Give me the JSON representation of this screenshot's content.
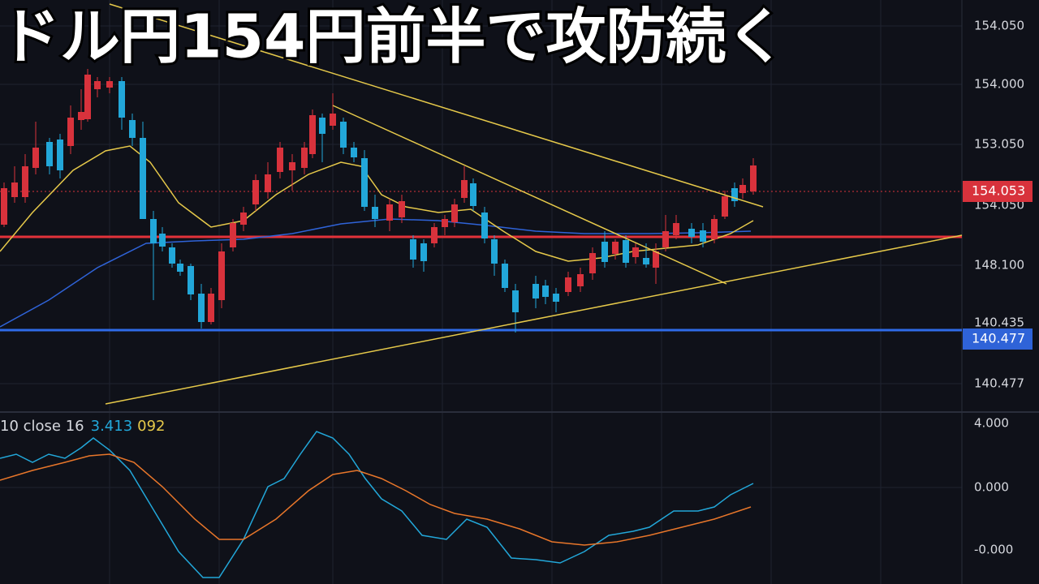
{
  "title": "ドル円154円前半で攻防続く",
  "price_axis": [
    "154.050",
    "154.000",
    "153.050",
    "154.050",
    "148.100",
    "140.435",
    "140.477"
  ],
  "price_tags": [
    "154.053",
    "140.477"
  ],
  "indicator": {
    "label": "10 close 16",
    "value1": "3.413",
    "value2": "092"
  },
  "oscillator_axis": [
    "4.000",
    "0.000",
    "-0.000"
  ]
}
